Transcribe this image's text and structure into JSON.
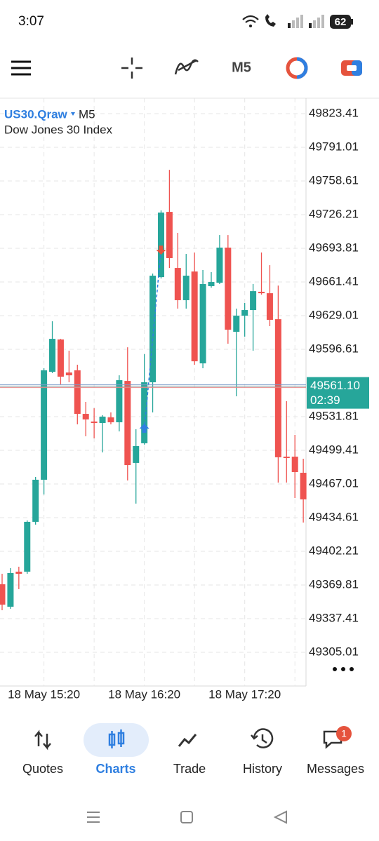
{
  "status_bar": {
    "time": "3:07",
    "battery": "62"
  },
  "toolbar": {
    "timeframe": "M5"
  },
  "chart_data": {
    "type": "candlestick",
    "symbol": "US30.Qraw",
    "timeframe": "M5",
    "description": "Dow Jones 30 Index",
    "categories": [
      null,
      null,
      null,
      null,
      null,
      "18 May 15:20",
      null,
      null,
      null,
      null,
      null,
      null,
      null,
      null,
      null,
      null,
      null,
      "18 May 16:20",
      null,
      null,
      null,
      null,
      null,
      null,
      null,
      null,
      null,
      null,
      null,
      "18 May 17:20",
      null,
      null,
      null,
      null,
      null,
      null,
      null
    ],
    "open": [
      49370.5,
      49348.9,
      49382.6,
      49382.6,
      49430.6,
      49471.1,
      49575.0,
      49606.1,
      49574.3,
      49576.4,
      49534.5,
      49527.1,
      49525.7,
      49531.1,
      49526.4,
      49566.2,
      49487.3,
      49506.2,
      49564.9,
      49666.1,
      49728.9,
      49674.9,
      49643.9,
      49671.5,
      49583.1,
      49657.4,
      49660.7,
      49694.5,
      49613.5,
      49629.0,
      49634.4,
      49652.0,
      49650.6,
      49625.6,
      49493.3,
      49493.3,
      49477.8
    ],
    "high": [
      49380.6,
      49386.0,
      49387.4,
      49431.9,
      49473.8,
      49578.4,
      49623.6,
      49606.7,
      49595.3,
      49581.8,
      49546.0,
      49539.9,
      49533.2,
      49535.9,
      49571.6,
      49598.6,
      49519.7,
      49591.9,
      49669.5,
      49730.3,
      49769.4,
      49708.7,
      49688.4,
      49689.8,
      49672.9,
      49670.9,
      49706.6,
      49706.6,
      49635.8,
      49641.2,
      49659.4,
      49689.8,
      49677.6,
      49658.0,
      49546.7,
      49514.3,
      49491.3
    ],
    "low": [
      49345.5,
      49346.9,
      49365.8,
      49380.6,
      49427.9,
      49456.9,
      49573.7,
      49562.9,
      49564.9,
      49524.4,
      49512.9,
      49510.9,
      49497.4,
      49524.4,
      49517.6,
      49470.4,
      49448.1,
      49504.9,
      49535.9,
      49664.8,
      49674.9,
      49635.8,
      49635.8,
      49581.8,
      49578.4,
      49656.0,
      49659.4,
      49602.0,
      49551.4,
      49608.8,
      49595.3,
      49649.3,
      49618.9,
      49468.4,
      49468.4,
      49453.5,
      49429.9
    ],
    "close": [
      49350.9,
      49381.3,
      49380.6,
      49430.6,
      49471.1,
      49576.4,
      49606.7,
      49570.3,
      49571.6,
      49534.5,
      49529.1,
      49525.7,
      49531.8,
      49526.4,
      49566.9,
      49485.2,
      49503.5,
      49564.9,
      49667.5,
      49728.2,
      49684.4,
      49643.9,
      49667.5,
      49585.1,
      49659.4,
      49661.4,
      49694.5,
      49615.5,
      49629.0,
      49634.4,
      49652.6,
      49650.6,
      49625.0,
      49492.7,
      49492.0,
      49478.5,
      49452.2
    ],
    "up_color": "#26a69a",
    "down_color": "#ef5350",
    "ylim": [
      49272.6,
      49838.3
    ],
    "yticks": [
      49823.41,
      49791.01,
      49758.61,
      49726.21,
      49693.81,
      49661.41,
      49629.01,
      49596.61,
      49531.81,
      49499.41,
      49467.01,
      49434.61,
      49402.21,
      49369.81,
      49337.41,
      49305.01
    ],
    "grid": true,
    "price_line": {
      "value": 49561.1,
      "label": "49561.10"
    },
    "countdown": "02:39",
    "trade": {
      "open_price": 49519.7,
      "close_price": 49693.1
    }
  },
  "nav": {
    "items": [
      "Quotes",
      "Charts",
      "Trade",
      "History",
      "Messages"
    ],
    "active": 1,
    "badge": "1"
  }
}
